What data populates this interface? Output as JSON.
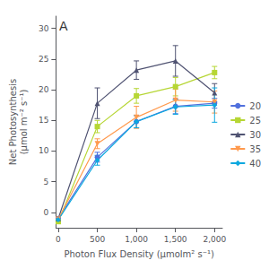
{
  "chart_data": {
    "type": "line",
    "x": [
      0,
      500,
      1000,
      1500,
      2000
    ],
    "series": [
      {
        "name": "20",
        "values": [
          -1.0,
          9.0,
          14.8,
          17.3,
          17.8
        ],
        "yerr": [
          0.3,
          0.8,
          1.0,
          1.2,
          0.8
        ],
        "marker": "circle"
      },
      {
        "name": "25",
        "values": [
          -1.5,
          14.0,
          19.0,
          20.5,
          22.8
        ],
        "yerr": [
          0.3,
          1.0,
          1.2,
          1.5,
          1.0
        ],
        "marker": "square"
      },
      {
        "name": "30",
        "values": [
          -1.0,
          17.8,
          23.2,
          24.7,
          19.5
        ],
        "yerr": [
          0.3,
          2.5,
          1.5,
          2.5,
          1.5
        ],
        "marker": "triangle-up"
      },
      {
        "name": "35",
        "values": [
          -1.1,
          11.2,
          15.5,
          18.3,
          18.0
        ],
        "yerr": [
          0.3,
          0.8,
          1.8,
          1.8,
          1.8
        ],
        "marker": "triangle-down"
      },
      {
        "name": "40",
        "values": [
          -1.2,
          8.5,
          14.8,
          17.2,
          17.5
        ],
        "yerr": [
          0.3,
          0.8,
          1.0,
          1.2,
          2.8
        ],
        "marker": "diamond"
      }
    ],
    "xlabel": "Photon Flux Density (μmolm² s⁻¹)",
    "ylabel": "Net Photosynthesis\n(μmol m⁻² s⁻¹)",
    "annotations": [
      "A"
    ],
    "xlim": [
      -30,
      2100
    ],
    "ylim": [
      -2.5,
      32
    ],
    "xticks": [
      0,
      500,
      1000,
      1500,
      2000
    ],
    "yticks": [
      0,
      5,
      10,
      15,
      20,
      25,
      30
    ],
    "grid": false,
    "legend": "right"
  }
}
